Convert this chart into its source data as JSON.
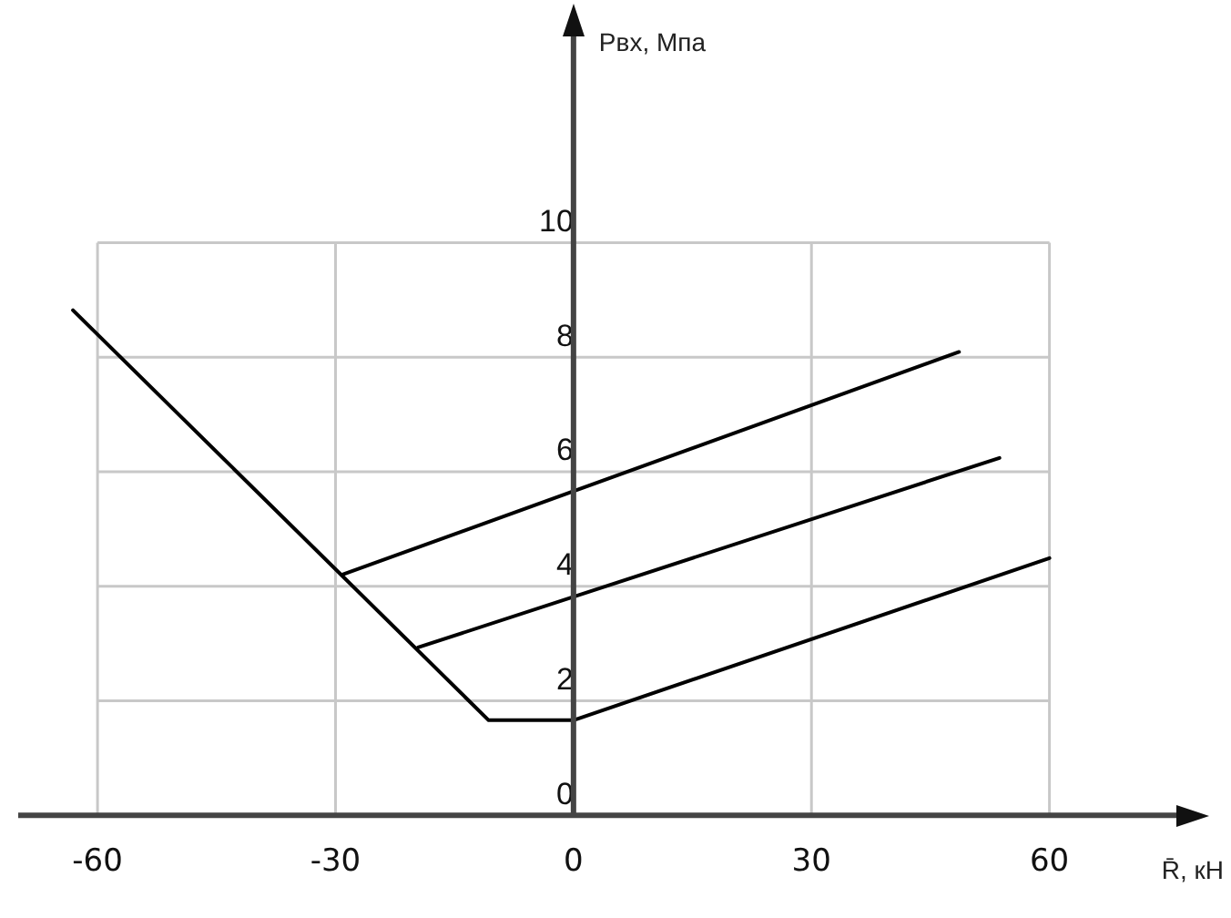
{
  "chart_data": {
    "type": "line",
    "xlabel": "R̄, кН",
    "ylabel": "Рвх, Мпа",
    "series": [
      {
        "color": "#000000",
        "x": [
          -63.1,
          -10.7,
          0,
          60
        ],
        "values": [
          8.82,
          1.66,
          1.66,
          4.49
        ]
      },
      {
        "color": "#000000",
        "x": [
          -19.6,
          53.7
        ],
        "values": [
          2.93,
          6.24
        ]
      },
      {
        "color": "#000000",
        "x": [
          -29.2,
          48.6
        ],
        "values": [
          4.2,
          8.09
        ]
      }
    ],
    "xlim": [
      -70,
      76
    ],
    "ylim": [
      0,
      13.6
    ],
    "xticks": [
      -60,
      -30,
      0,
      30,
      60
    ],
    "yticks": [
      0,
      2,
      4,
      6,
      8,
      10
    ],
    "grid": true,
    "marker": "none",
    "line_style": "solid"
  }
}
